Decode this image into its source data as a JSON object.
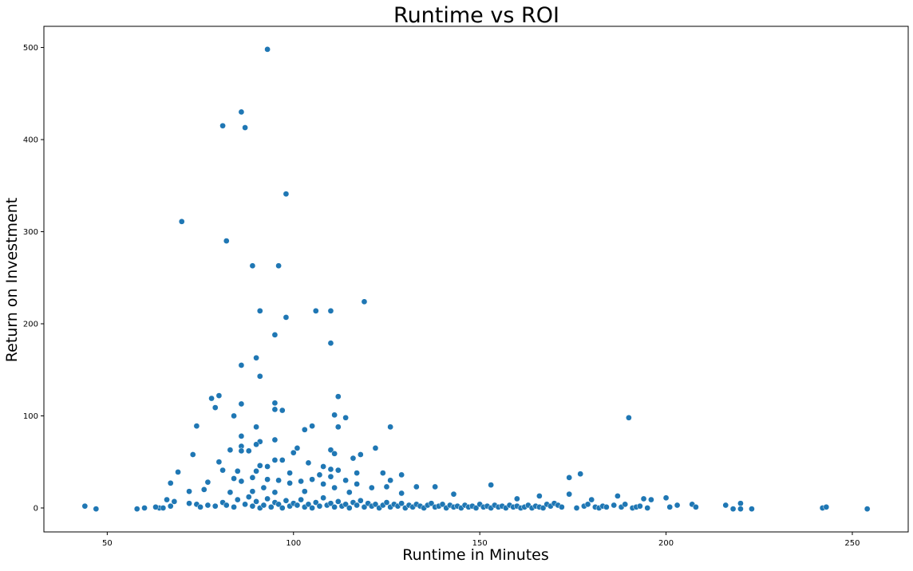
{
  "chart_data": {
    "type": "scatter",
    "title": "Runtime vs ROI",
    "xlabel": "Runtime in Minutes",
    "ylabel": "Return on Investment",
    "xlim": [
      33,
      265
    ],
    "ylim": [
      -26,
      523
    ],
    "xticks": [
      50,
      100,
      150,
      200,
      250
    ],
    "yticks": [
      0,
      100,
      200,
      300,
      400,
      500
    ],
    "grid": false,
    "legend": "none",
    "marker_color": "#1f77b4",
    "series": [
      {
        "points": [
          [
            93,
            498
          ],
          [
            86,
            430
          ],
          [
            81,
            415
          ],
          [
            87,
            413
          ],
          [
            98,
            341
          ],
          [
            70,
            311
          ],
          [
            82,
            290
          ],
          [
            89,
            263
          ],
          [
            96,
            263
          ],
          [
            119,
            224
          ],
          [
            91,
            214
          ],
          [
            106,
            214
          ],
          [
            110,
            214
          ],
          [
            98,
            207
          ],
          [
            95,
            188
          ],
          [
            110,
            179
          ],
          [
            90,
            163
          ],
          [
            86,
            155
          ],
          [
            91,
            143
          ],
          [
            80,
            122
          ],
          [
            112,
            121
          ],
          [
            78,
            119
          ],
          [
            79,
            109
          ],
          [
            86,
            113
          ],
          [
            95,
            114
          ],
          [
            95,
            107
          ],
          [
            97,
            106
          ],
          [
            190,
            98
          ],
          [
            111,
            101
          ],
          [
            114,
            98
          ],
          [
            84,
            100
          ],
          [
            74,
            89
          ],
          [
            90,
            88
          ],
          [
            105,
            89
          ],
          [
            103,
            85
          ],
          [
            126,
            88
          ],
          [
            112,
            88
          ],
          [
            86,
            78
          ],
          [
            95,
            74
          ],
          [
            91,
            72
          ],
          [
            90,
            69
          ],
          [
            86,
            67
          ],
          [
            101,
            65
          ],
          [
            100,
            60
          ],
          [
            110,
            63
          ],
          [
            122,
            65
          ],
          [
            111,
            59
          ],
          [
            86,
            62
          ],
          [
            88,
            62
          ],
          [
            83,
            63
          ],
          [
            73,
            58
          ],
          [
            118,
            58
          ],
          [
            116,
            54
          ],
          [
            95,
            52
          ],
          [
            97,
            52
          ],
          [
            80,
            50
          ],
          [
            104,
            49
          ],
          [
            91,
            46
          ],
          [
            93,
            45
          ],
          [
            108,
            45
          ],
          [
            110,
            42
          ],
          [
            112,
            41
          ],
          [
            69,
            39
          ],
          [
            85,
            40
          ],
          [
            81,
            41
          ],
          [
            90,
            40
          ],
          [
            117,
            38
          ],
          [
            124,
            38
          ],
          [
            107,
            36
          ],
          [
            110,
            34
          ],
          [
            129,
            36
          ],
          [
            99,
            38
          ],
          [
            177,
            37
          ],
          [
            174,
            33
          ],
          [
            84,
            32
          ],
          [
            89,
            33
          ],
          [
            93,
            31
          ],
          [
            96,
            30
          ],
          [
            102,
            29
          ],
          [
            105,
            31
          ],
          [
            114,
            30
          ],
          [
            126,
            30
          ],
          [
            67,
            27
          ],
          [
            77,
            28
          ],
          [
            86,
            29
          ],
          [
            99,
            27
          ],
          [
            108,
            26
          ],
          [
            117,
            26
          ],
          [
            153,
            25
          ],
          [
            125,
            23
          ],
          [
            133,
            23
          ],
          [
            138,
            23
          ],
          [
            121,
            22
          ],
          [
            92,
            22
          ],
          [
            111,
            22
          ],
          [
            76,
            20
          ],
          [
            72,
            18
          ],
          [
            83,
            17
          ],
          [
            89,
            18
          ],
          [
            95,
            17
          ],
          [
            103,
            18
          ],
          [
            115,
            17
          ],
          [
            129,
            16
          ],
          [
            143,
            15
          ],
          [
            174,
            15
          ],
          [
            68,
            7
          ],
          [
            66,
            9
          ],
          [
            64,
            0
          ],
          [
            187,
            13
          ],
          [
            166,
            13
          ],
          [
            160,
            10
          ],
          [
            180,
            9
          ],
          [
            196,
            9
          ],
          [
            194,
            10
          ],
          [
            200,
            11
          ],
          [
            44,
            2
          ],
          [
            47,
            -1
          ],
          [
            58,
            -1
          ],
          [
            60,
            0
          ],
          [
            63,
            1
          ],
          [
            65,
            0
          ],
          [
            67,
            2
          ],
          [
            72,
            5
          ],
          [
            74,
            4
          ],
          [
            75,
            1
          ],
          [
            77,
            3
          ],
          [
            79,
            2
          ],
          [
            81,
            6
          ],
          [
            82,
            3
          ],
          [
            84,
            1
          ],
          [
            85,
            9
          ],
          [
            87,
            4
          ],
          [
            88,
            12
          ],
          [
            89,
            2
          ],
          [
            90,
            7
          ],
          [
            91,
            0
          ],
          [
            92,
            3
          ],
          [
            93,
            10
          ],
          [
            94,
            1
          ],
          [
            95,
            6
          ],
          [
            96,
            4
          ],
          [
            97,
            0
          ],
          [
            98,
            8
          ],
          [
            99,
            2
          ],
          [
            100,
            5
          ],
          [
            101,
            3
          ],
          [
            102,
            9
          ],
          [
            103,
            1
          ],
          [
            104,
            4
          ],
          [
            105,
            0
          ],
          [
            106,
            6
          ],
          [
            107,
            2
          ],
          [
            108,
            11
          ],
          [
            109,
            3
          ],
          [
            110,
            5
          ],
          [
            111,
            1
          ],
          [
            112,
            7
          ],
          [
            113,
            2
          ],
          [
            114,
            4
          ],
          [
            115,
            0
          ],
          [
            116,
            6
          ],
          [
            117,
            3
          ],
          [
            118,
            8
          ],
          [
            119,
            1
          ],
          [
            120,
            5
          ],
          [
            121,
            2
          ],
          [
            122,
            4
          ],
          [
            123,
            0
          ],
          [
            124,
            3
          ],
          [
            125,
            6
          ],
          [
            126,
            1
          ],
          [
            127,
            4
          ],
          [
            128,
            2
          ],
          [
            129,
            5
          ],
          [
            130,
            0
          ],
          [
            131,
            3
          ],
          [
            132,
            1
          ],
          [
            133,
            4
          ],
          [
            134,
            2
          ],
          [
            135,
            0
          ],
          [
            136,
            3
          ],
          [
            137,
            5
          ],
          [
            138,
            1
          ],
          [
            139,
            2
          ],
          [
            140,
            4
          ],
          [
            141,
            0
          ],
          [
            142,
            3
          ],
          [
            143,
            1
          ],
          [
            144,
            2
          ],
          [
            145,
            0
          ],
          [
            146,
            3
          ],
          [
            147,
            1
          ],
          [
            148,
            2
          ],
          [
            149,
            0
          ],
          [
            150,
            4
          ],
          [
            151,
            1
          ],
          [
            152,
            2
          ],
          [
            153,
            0
          ],
          [
            154,
            3
          ],
          [
            155,
            1
          ],
          [
            156,
            2
          ],
          [
            157,
            0
          ],
          [
            158,
            3
          ],
          [
            159,
            1
          ],
          [
            160,
            2
          ],
          [
            161,
            0
          ],
          [
            162,
            1
          ],
          [
            163,
            3
          ],
          [
            164,
            0
          ],
          [
            165,
            2
          ],
          [
            166,
            1
          ],
          [
            167,
            0
          ],
          [
            168,
            4
          ],
          [
            169,
            2
          ],
          [
            170,
            5
          ],
          [
            171,
            3
          ],
          [
            172,
            1
          ],
          [
            176,
            0
          ],
          [
            178,
            2
          ],
          [
            179,
            4
          ],
          [
            181,
            1
          ],
          [
            182,
            0
          ],
          [
            183,
            2
          ],
          [
            184,
            1
          ],
          [
            186,
            3
          ],
          [
            188,
            1
          ],
          [
            189,
            4
          ],
          [
            191,
            0
          ],
          [
            192,
            1
          ],
          [
            193,
            2
          ],
          [
            195,
            0
          ],
          [
            201,
            1
          ],
          [
            203,
            3
          ],
          [
            207,
            4
          ],
          [
            208,
            1
          ],
          [
            216,
            3
          ],
          [
            218,
            -1
          ],
          [
            220,
            5
          ],
          [
            220,
            -1
          ],
          [
            223,
            -1
          ],
          [
            242,
            0
          ],
          [
            243,
            1
          ],
          [
            254,
            -1
          ]
        ]
      }
    ]
  }
}
